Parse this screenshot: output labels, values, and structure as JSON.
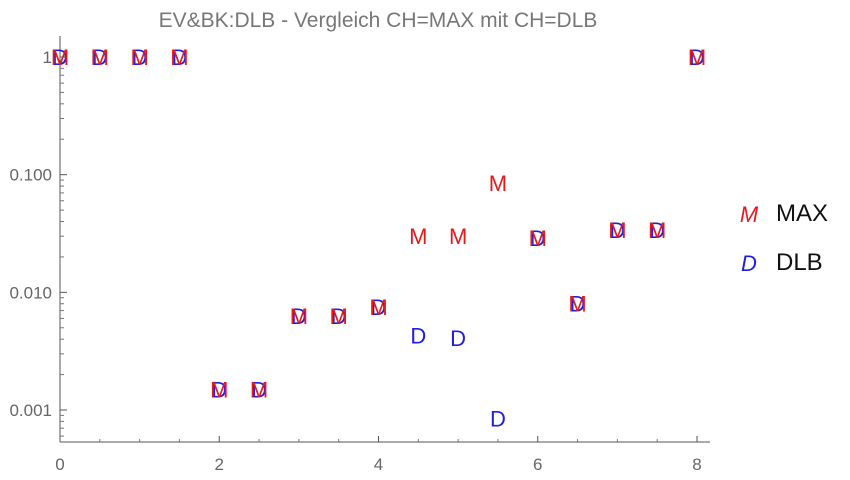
{
  "chart_data": {
    "type": "scatter",
    "title": "EV&BK:DLB - Vergleich CH=MAX mit CH=DLB",
    "xlabel": "",
    "ylabel": "",
    "xlim": [
      0,
      8.2
    ],
    "ylim": [
      0.0006,
      1.6
    ],
    "yscale": "log",
    "x_ticks": [
      0,
      2,
      4,
      6,
      8
    ],
    "x_tick_labels": [
      "0",
      "2",
      "4",
      "6",
      "8"
    ],
    "y_ticks": [
      0.001,
      0.01,
      0.1,
      1
    ],
    "y_tick_labels": [
      "0.001",
      "0.010",
      "0.100",
      "1"
    ],
    "grid": false,
    "legend_position": "right",
    "series": [
      {
        "name": "MAX",
        "marker": "M",
        "color": "#e31a1c",
        "points": [
          [
            0,
            1
          ],
          [
            0.5,
            1
          ],
          [
            1,
            1
          ],
          [
            1.5,
            1
          ],
          [
            2,
            0.0015
          ],
          [
            2.5,
            0.0015
          ],
          [
            3,
            0.0063
          ],
          [
            3.5,
            0.0063
          ],
          [
            4,
            0.0075
          ],
          [
            4.5,
            0.03
          ],
          [
            5,
            0.03
          ],
          [
            5.5,
            0.085
          ],
          [
            6,
            0.029
          ],
          [
            6.5,
            0.008
          ],
          [
            7,
            0.034
          ],
          [
            7.5,
            0.034
          ],
          [
            8,
            1
          ]
        ]
      },
      {
        "name": "DLB",
        "marker": "D",
        "color": "#1f1fe3",
        "points": [
          [
            0,
            1
          ],
          [
            0.5,
            1
          ],
          [
            1,
            1
          ],
          [
            1.5,
            1
          ],
          [
            2,
            0.0015
          ],
          [
            2.5,
            0.0015
          ],
          [
            3,
            0.0063
          ],
          [
            3.5,
            0.0063
          ],
          [
            4,
            0.0075
          ],
          [
            4.5,
            0.0043
          ],
          [
            5,
            0.0041
          ],
          [
            5.5,
            0.00085
          ],
          [
            6,
            0.029
          ],
          [
            6.5,
            0.008
          ],
          [
            7,
            0.034
          ],
          [
            7.5,
            0.034
          ],
          [
            8,
            1
          ]
        ]
      }
    ]
  }
}
